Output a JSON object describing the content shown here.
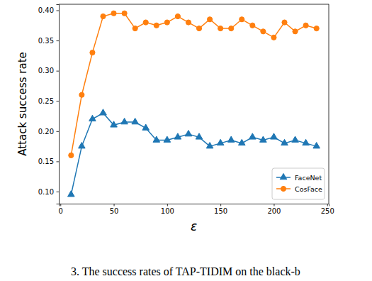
{
  "chart_data": {
    "type": "line",
    "x_label": "ε",
    "y_label": "Attack success rate",
    "annotations": [
      "3. The success rates of TAP-TIDIM on the black-b"
    ],
    "x": [
      10,
      20,
      30,
      40,
      50,
      60,
      70,
      80,
      90,
      100,
      110,
      120,
      130,
      140,
      150,
      160,
      170,
      180,
      190,
      200,
      210,
      220,
      230,
      240
    ],
    "series": [
      {
        "name": "FaceNet",
        "color": "#1f77b4",
        "marker": "triangle",
        "line_style": "solid",
        "values": [
          0.095,
          0.175,
          0.22,
          0.23,
          0.21,
          0.215,
          0.215,
          0.205,
          0.185,
          0.185,
          0.19,
          0.195,
          0.19,
          0.175,
          0.18,
          0.185,
          0.18,
          0.19,
          0.185,
          0.19,
          0.18,
          0.185,
          0.18,
          0.175
        ]
      },
      {
        "name": "CosFace",
        "color": "#ff7f0e",
        "marker": "circle",
        "line_style": "solid",
        "values": [
          0.16,
          0.26,
          0.33,
          0.39,
          0.395,
          0.395,
          0.37,
          0.38,
          0.375,
          0.38,
          0.39,
          0.38,
          0.37,
          0.385,
          0.37,
          0.37,
          0.385,
          0.375,
          0.365,
          0.355,
          0.38,
          0.365,
          0.375,
          0.37
        ]
      }
    ],
    "xlim": [
      -1.5,
      251.5
    ],
    "ylim": [
      0.08,
      0.41
    ],
    "xticks": [
      0,
      50,
      100,
      150,
      200,
      250
    ],
    "yticks": [
      {
        "value": 0.1,
        "label": "0.10"
      },
      0.15,
      {
        "value": 0.2,
        "label": "0.20"
      },
      0.25,
      {
        "value": 0.3,
        "label": "0.30"
      },
      0.35,
      {
        "value": 0.4,
        "label": "0.40"
      }
    ],
    "legend": "lower right",
    "grid": false
  }
}
